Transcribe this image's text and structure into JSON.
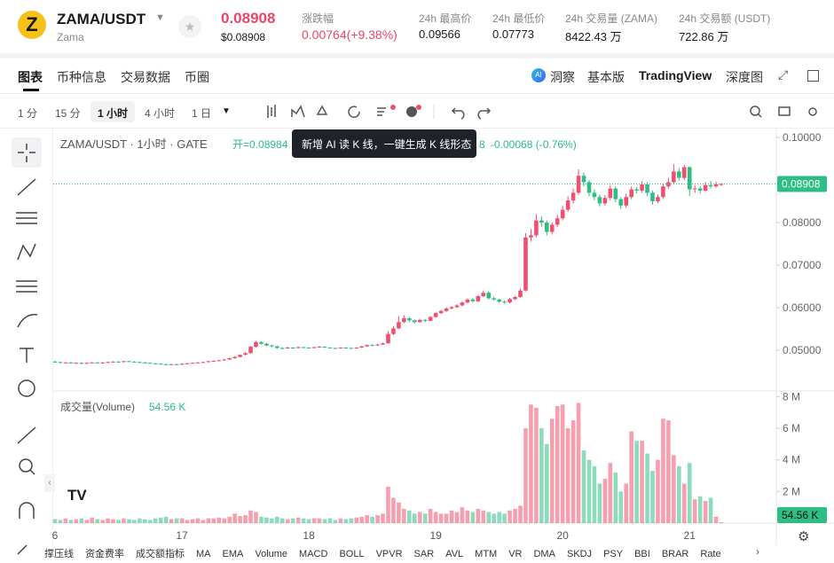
{
  "header": {
    "symbol": "ZAMA/USDT",
    "name": "Zama",
    "price": "0.08908",
    "price_usd": "$0.08908",
    "change_label": "涨跌幅",
    "change": "0.00764(+9.38%)",
    "stats": [
      {
        "label": "24h 最高价",
        "value": "0.09566"
      },
      {
        "label": "24h 最低价",
        "value": "0.07773"
      },
      {
        "label": "24h 交易量 (ZAMA)",
        "value": "8422.43 万"
      },
      {
        "label": "24h 交易额 (USDT)",
        "value": "722.86 万"
      }
    ]
  },
  "tabs": [
    "图表",
    "币种信息",
    "交易数据",
    "币圈"
  ],
  "views": [
    "洞察",
    "基本版",
    "TradingView",
    "深度图"
  ],
  "intervals": [
    "1 分",
    "15 分",
    "1 小时",
    "4 小时",
    "1 日"
  ],
  "tooltip": "新增 AI 读 K 线，一键生成 K 线形态",
  "indicators": [
    "撑压线",
    "资金费率",
    "成交额指标",
    "MA",
    "EMA",
    "Volume",
    "MACD",
    "BOLL",
    "VPVR",
    "SAR",
    "AVL",
    "MTM",
    "VR",
    "DMA",
    "SKDJ",
    "PSY",
    "BBI",
    "BRAR",
    "Rate"
  ],
  "chart_data": {
    "type": "candlestick",
    "legend_title": "ZAMA/USDT · 1小时 · GATE",
    "legend_open": "开=0.08984",
    "legend_fragment": "8",
    "legend_change": "-0.00068 (-0.76%)",
    "volume_title": "成交量(Volume)",
    "last_volume_label": "54.56 K",
    "up_color": "#f0506e",
    "down_color": "#2dbd85",
    "categories": [
      "6",
      null,
      null,
      null,
      null,
      null,
      null,
      null,
      null,
      null,
      null,
      null,
      null,
      null,
      null,
      null,
      null,
      null,
      null,
      null,
      null,
      null,
      null,
      null,
      "17",
      null,
      null,
      null,
      null,
      null,
      null,
      null,
      null,
      null,
      null,
      null,
      null,
      null,
      null,
      null,
      null,
      null,
      null,
      null,
      null,
      null,
      null,
      null,
      "18",
      null,
      null,
      null,
      null,
      null,
      null,
      null,
      null,
      null,
      null,
      null,
      null,
      null,
      null,
      null,
      null,
      null,
      null,
      null,
      null,
      null,
      null,
      null,
      "19",
      null,
      null,
      null,
      null,
      null,
      null,
      null,
      null,
      null,
      null,
      null,
      null,
      null,
      null,
      null,
      null,
      null,
      null,
      null,
      null,
      null,
      null,
      null,
      "20",
      null,
      null,
      null,
      null,
      null,
      null,
      null,
      null,
      null,
      null,
      null,
      null,
      null,
      null,
      null,
      null,
      null,
      null,
      null,
      null,
      null,
      null,
      null,
      "21",
      null,
      null,
      null,
      null,
      null,
      null
    ],
    "open": [
      0.0473,
      0.0472,
      0.047,
      0.0471,
      0.0469,
      0.047,
      0.0468,
      0.047,
      0.0471,
      0.0469,
      0.0471,
      0.0472,
      0.0473,
      0.0472,
      0.0474,
      0.0473,
      0.0472,
      0.0471,
      0.047,
      0.0469,
      0.0468,
      0.0467,
      0.0466,
      0.0467,
      0.0466,
      0.0468,
      0.0469,
      0.047,
      0.0471,
      0.0472,
      0.0474,
      0.0475,
      0.0476,
      0.0478,
      0.0481,
      0.0484,
      0.0489,
      0.0493,
      0.0508,
      0.0519,
      0.0515,
      0.0511,
      0.0509,
      0.0505,
      0.0504,
      0.0506,
      0.0505,
      0.0507,
      0.0506,
      0.0505,
      0.0507,
      0.0508,
      0.0506,
      0.0505,
      0.0504,
      0.0506,
      0.0505,
      0.0504,
      0.0506,
      0.0509,
      0.0512,
      0.0511,
      0.0513,
      0.0516,
      0.0538,
      0.0551,
      0.0566,
      0.0575,
      0.057,
      0.0566,
      0.0571,
      0.0569,
      0.0578,
      0.0587,
      0.0592,
      0.0598,
      0.0601,
      0.0605,
      0.0612,
      0.0619,
      0.0615,
      0.0627,
      0.0635,
      0.0622,
      0.0619,
      0.0614,
      0.0612,
      0.062,
      0.0625,
      0.064,
      0.0765,
      0.077,
      0.0805,
      0.08,
      0.0778,
      0.0795,
      0.081,
      0.083,
      0.0852,
      0.087,
      0.091,
      0.0895,
      0.087,
      0.086,
      0.0845,
      0.0858,
      0.088,
      0.0855,
      0.084,
      0.086,
      0.0878,
      0.0875,
      0.089,
      0.087,
      0.085,
      0.086,
      0.0885,
      0.0895,
      0.092,
      0.0905,
      0.093,
      0.0878,
      0.088,
      0.0875,
      0.0888,
      0.0885,
      0.089
    ],
    "high": [
      0.0475,
      0.0473,
      0.0472,
      0.0472,
      0.0471,
      0.0471,
      0.0471,
      0.0472,
      0.0472,
      0.0472,
      0.0473,
      0.0474,
      0.0474,
      0.0475,
      0.0475,
      0.0474,
      0.0473,
      0.0472,
      0.0471,
      0.047,
      0.0469,
      0.0468,
      0.0468,
      0.0468,
      0.0469,
      0.047,
      0.0471,
      0.0472,
      0.0473,
      0.0475,
      0.0476,
      0.0477,
      0.0479,
      0.0482,
      0.0486,
      0.049,
      0.0495,
      0.051,
      0.0522,
      0.0521,
      0.0517,
      0.0513,
      0.0511,
      0.0507,
      0.0508,
      0.0507,
      0.0508,
      0.0508,
      0.0507,
      0.0508,
      0.051,
      0.0509,
      0.0507,
      0.0506,
      0.0507,
      0.0507,
      0.0506,
      0.0507,
      0.051,
      0.0513,
      0.0514,
      0.0515,
      0.0518,
      0.0545,
      0.0556,
      0.058,
      0.0582,
      0.0578,
      0.0572,
      0.0574,
      0.0573,
      0.058,
      0.059,
      0.0595,
      0.0601,
      0.0604,
      0.0608,
      0.0615,
      0.0622,
      0.0622,
      0.063,
      0.064,
      0.0638,
      0.0625,
      0.0621,
      0.0617,
      0.0623,
      0.0628,
      0.0645,
      0.0775,
      0.0785,
      0.082,
      0.0815,
      0.0805,
      0.08,
      0.0818,
      0.084,
      0.0862,
      0.088,
      0.0925,
      0.0918,
      0.09,
      0.0878,
      0.0866,
      0.0865,
      0.0888,
      0.0885,
      0.086,
      0.0868,
      0.0885,
      0.0884,
      0.0898,
      0.0895,
      0.0875,
      0.0866,
      0.0892,
      0.0905,
      0.0938,
      0.0928,
      0.0935,
      0.0932,
      0.0888,
      0.0886,
      0.0895,
      0.0898,
      0.0896,
      0.0893
    ],
    "low": [
      0.047,
      0.0469,
      0.0469,
      0.0468,
      0.0468,
      0.0467,
      0.0467,
      0.0469,
      0.0468,
      0.0468,
      0.047,
      0.0471,
      0.0471,
      0.0471,
      0.0472,
      0.0471,
      0.047,
      0.0469,
      0.0468,
      0.0467,
      0.0466,
      0.0464,
      0.0465,
      0.0465,
      0.0465,
      0.0467,
      0.0468,
      0.0469,
      0.047,
      0.0471,
      0.0473,
      0.0474,
      0.0475,
      0.0477,
      0.048,
      0.0483,
      0.0488,
      0.0492,
      0.0506,
      0.0513,
      0.0509,
      0.0507,
      0.0503,
      0.0502,
      0.0503,
      0.0503,
      0.0504,
      0.0505,
      0.0504,
      0.0504,
      0.0506,
      0.0505,
      0.0504,
      0.0503,
      0.0503,
      0.0504,
      0.0503,
      0.0503,
      0.0505,
      0.0508,
      0.051,
      0.051,
      0.0512,
      0.0515,
      0.0535,
      0.0549,
      0.0563,
      0.0566,
      0.0562,
      0.0564,
      0.0566,
      0.0568,
      0.0576,
      0.0585,
      0.059,
      0.0596,
      0.0599,
      0.0603,
      0.061,
      0.0612,
      0.0613,
      0.0625,
      0.0619,
      0.0616,
      0.0611,
      0.0609,
      0.061,
      0.0618,
      0.0623,
      0.0638,
      0.0755,
      0.0765,
      0.079,
      0.077,
      0.0772,
      0.079,
      0.0805,
      0.0825,
      0.0845,
      0.0865,
      0.0885,
      0.0862,
      0.0852,
      0.0838,
      0.084,
      0.0852,
      0.0848,
      0.0832,
      0.0835,
      0.0855,
      0.0868,
      0.087,
      0.0862,
      0.0842,
      0.0845,
      0.0855,
      0.088,
      0.089,
      0.0898,
      0.09,
      0.0862,
      0.087,
      0.0868,
      0.0872,
      0.088,
      0.0882,
      0.0886
    ],
    "close": [
      0.0472,
      0.047,
      0.0471,
      0.0469,
      0.047,
      0.0468,
      0.047,
      0.0471,
      0.0469,
      0.0471,
      0.0472,
      0.0473,
      0.0472,
      0.0474,
      0.0473,
      0.0472,
      0.0471,
      0.047,
      0.0469,
      0.0468,
      0.0467,
      0.0466,
      0.0467,
      0.0466,
      0.0468,
      0.0469,
      0.047,
      0.0471,
      0.0472,
      0.0474,
      0.0475,
      0.0476,
      0.0478,
      0.0481,
      0.0484,
      0.0489,
      0.0493,
      0.0508,
      0.0519,
      0.0515,
      0.0511,
      0.0509,
      0.0505,
      0.0504,
      0.0506,
      0.0505,
      0.0507,
      0.0506,
      0.0505,
      0.0507,
      0.0508,
      0.0506,
      0.0505,
      0.0504,
      0.0506,
      0.0505,
      0.0504,
      0.0506,
      0.0509,
      0.0512,
      0.0511,
      0.0513,
      0.0516,
      0.0538,
      0.0551,
      0.0566,
      0.0575,
      0.057,
      0.0566,
      0.0571,
      0.0569,
      0.0578,
      0.0587,
      0.0592,
      0.0598,
      0.0601,
      0.0605,
      0.0612,
      0.0619,
      0.0615,
      0.0627,
      0.0635,
      0.0622,
      0.0619,
      0.0614,
      0.0612,
      0.062,
      0.0625,
      0.064,
      0.0765,
      0.077,
      0.0805,
      0.08,
      0.0778,
      0.0795,
      0.081,
      0.083,
      0.0852,
      0.087,
      0.091,
      0.0895,
      0.087,
      0.086,
      0.0845,
      0.0858,
      0.088,
      0.0855,
      0.084,
      0.086,
      0.0878,
      0.0875,
      0.089,
      0.087,
      0.085,
      0.086,
      0.0885,
      0.0895,
      0.092,
      0.0905,
      0.093,
      0.0878,
      0.088,
      0.0875,
      0.0888,
      0.0885,
      0.089,
      0.08908
    ],
    "volume": [
      0.25,
      0.2,
      0.3,
      0.2,
      0.25,
      0.3,
      0.2,
      0.35,
      0.25,
      0.2,
      0.3,
      0.25,
      0.2,
      0.3,
      0.25,
      0.2,
      0.3,
      0.25,
      0.2,
      0.3,
      0.35,
      0.4,
      0.25,
      0.3,
      0.3,
      0.2,
      0.25,
      0.3,
      0.2,
      0.3,
      0.3,
      0.35,
      0.3,
      0.4,
      0.6,
      0.45,
      0.5,
      0.8,
      0.7,
      0.4,
      0.35,
      0.3,
      0.4,
      0.3,
      0.25,
      0.3,
      0.35,
      0.3,
      0.25,
      0.3,
      0.3,
      0.25,
      0.3,
      0.2,
      0.3,
      0.25,
      0.3,
      0.35,
      0.4,
      0.5,
      0.4,
      0.5,
      0.6,
      2.3,
      1.6,
      1.3,
      0.9,
      0.8,
      0.6,
      0.7,
      0.6,
      0.9,
      0.7,
      0.6,
      0.6,
      0.8,
      0.7,
      1.0,
      0.8,
      0.7,
      0.9,
      0.8,
      0.7,
      0.6,
      0.7,
      0.6,
      0.8,
      0.9,
      1.1,
      6.0,
      7.5,
      7.3,
      6.0,
      5.0,
      6.6,
      7.4,
      7.5,
      6.0,
      6.5,
      7.6,
      4.6,
      4.0,
      3.6,
      2.5,
      2.8,
      3.8,
      3.2,
      2.0,
      2.5,
      5.8,
      5.2,
      5.2,
      4.4,
      3.3,
      4.0,
      6.6,
      6.5,
      4.3,
      3.6,
      2.5,
      3.8,
      1.5,
      1.7,
      1.4,
      1.6,
      0.4,
      0.05456
    ],
    "ylim": [
      0.0406,
      0.1021
    ],
    "yticks": [
      {
        "value": 0.05,
        "label": "0.05000"
      },
      {
        "value": 0.06,
        "label": "0.06000"
      },
      {
        "value": 0.07,
        "label": "0.07000"
      },
      {
        "value": 0.08,
        "label": "0.08000"
      },
      {
        "value": 0.1,
        "label": "0.10000"
      }
    ],
    "volume_ylim": [
      0,
      8.3
    ],
    "volume_yticks": [
      {
        "value": 2,
        "label": "2 M"
      },
      {
        "value": 4,
        "label": "4 M"
      },
      {
        "value": 6,
        "label": "6 M"
      },
      {
        "value": 8,
        "label": "8 M"
      }
    ]
  }
}
